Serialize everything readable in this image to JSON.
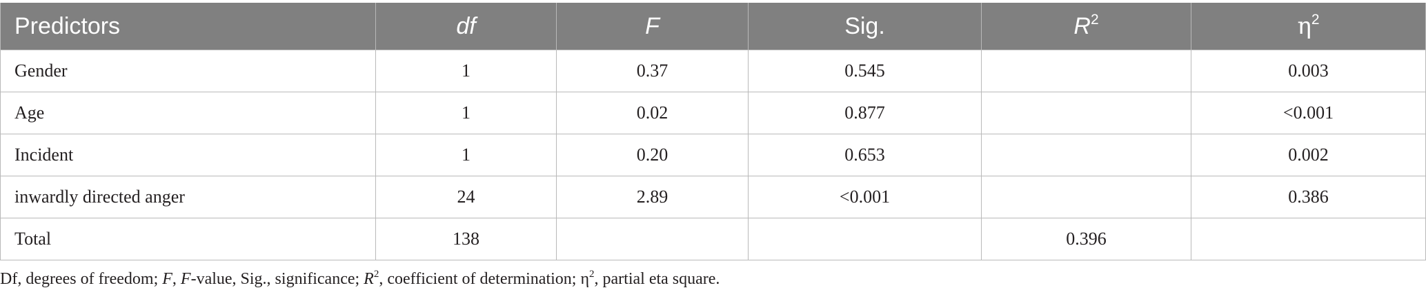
{
  "table": {
    "headers": {
      "predictors": "Predictors",
      "df": "df",
      "f": "F",
      "sig": "Sig.",
      "r_base": "R",
      "r_sup": "2",
      "eta_base": "η",
      "eta_sup": "2"
    },
    "rows": [
      {
        "predictor": "Gender",
        "df": "1",
        "f": "0.37",
        "sig": "0.545",
        "r2": "",
        "eta2": "0.003"
      },
      {
        "predictor": "Age",
        "df": "1",
        "f": "0.02",
        "sig": "0.877",
        "r2": "",
        "eta2": "<0.001"
      },
      {
        "predictor": "Incident",
        "df": "1",
        "f": "0.20",
        "sig": "0.653",
        "r2": "",
        "eta2": "0.002"
      },
      {
        "predictor": "inwardly directed anger",
        "df": "24",
        "f": "2.89",
        "sig": "<0.001",
        "r2": "",
        "eta2": "0.386"
      },
      {
        "predictor": "Total",
        "df": "138",
        "f": "",
        "sig": "",
        "r2": "0.396",
        "eta2": ""
      }
    ]
  },
  "footnote": {
    "p1": "Df, degrees of freedom; ",
    "f_ital": "F",
    "p2": ", ",
    "f_ital2": "F",
    "p3": "-value, Sig., significance; ",
    "r_ital": "R",
    "r_sup": "2",
    "p4": ", coefficient of determination; η",
    "eta_sup": "2",
    "p5": ", partial eta square."
  }
}
